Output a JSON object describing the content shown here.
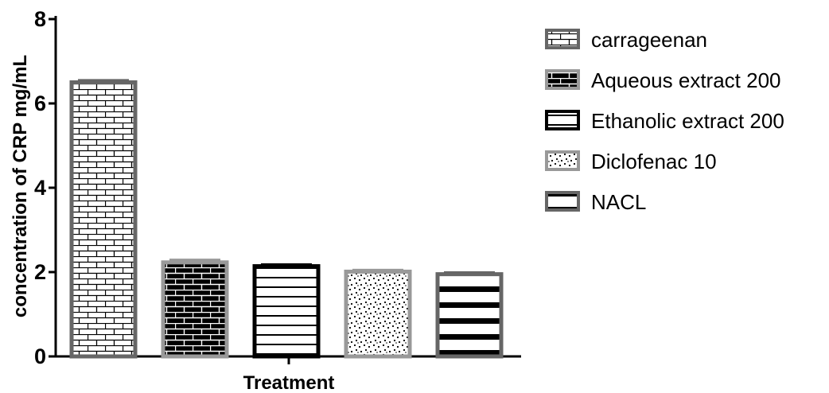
{
  "chart_data": {
    "type": "bar",
    "xlabel": "Treatment",
    "ylabel": "concentration of CRP mg/mL",
    "ylim": [
      0,
      8
    ],
    "yticks": [
      0,
      2,
      4,
      6,
      8
    ],
    "grid": false,
    "legend_position": "right",
    "series": [
      {
        "name": "carrageenan",
        "value": 6.5,
        "error": 0.05,
        "pattern": "brick",
        "fill": "#ffffff",
        "stroke": "#666666"
      },
      {
        "name": "Aqueous extract 200",
        "value": 2.23,
        "error": 0.06,
        "pattern": "brick",
        "fill": "#000000",
        "stroke": "#999999"
      },
      {
        "name": "Ethanolic extract 200",
        "value": 2.14,
        "error": 0.04,
        "pattern": "hstripes-thin",
        "fill": "#ffffff",
        "stroke": "#000000"
      },
      {
        "name": "Diclofenac 10",
        "value": 2.01,
        "error": 0.04,
        "pattern": "dots",
        "fill": "#ffffff",
        "stroke": "#999999"
      },
      {
        "name": "NACL",
        "value": 1.95,
        "error": 0.04,
        "pattern": "hstripes-thick",
        "fill": "#ffffff",
        "stroke": "#666666"
      }
    ]
  }
}
